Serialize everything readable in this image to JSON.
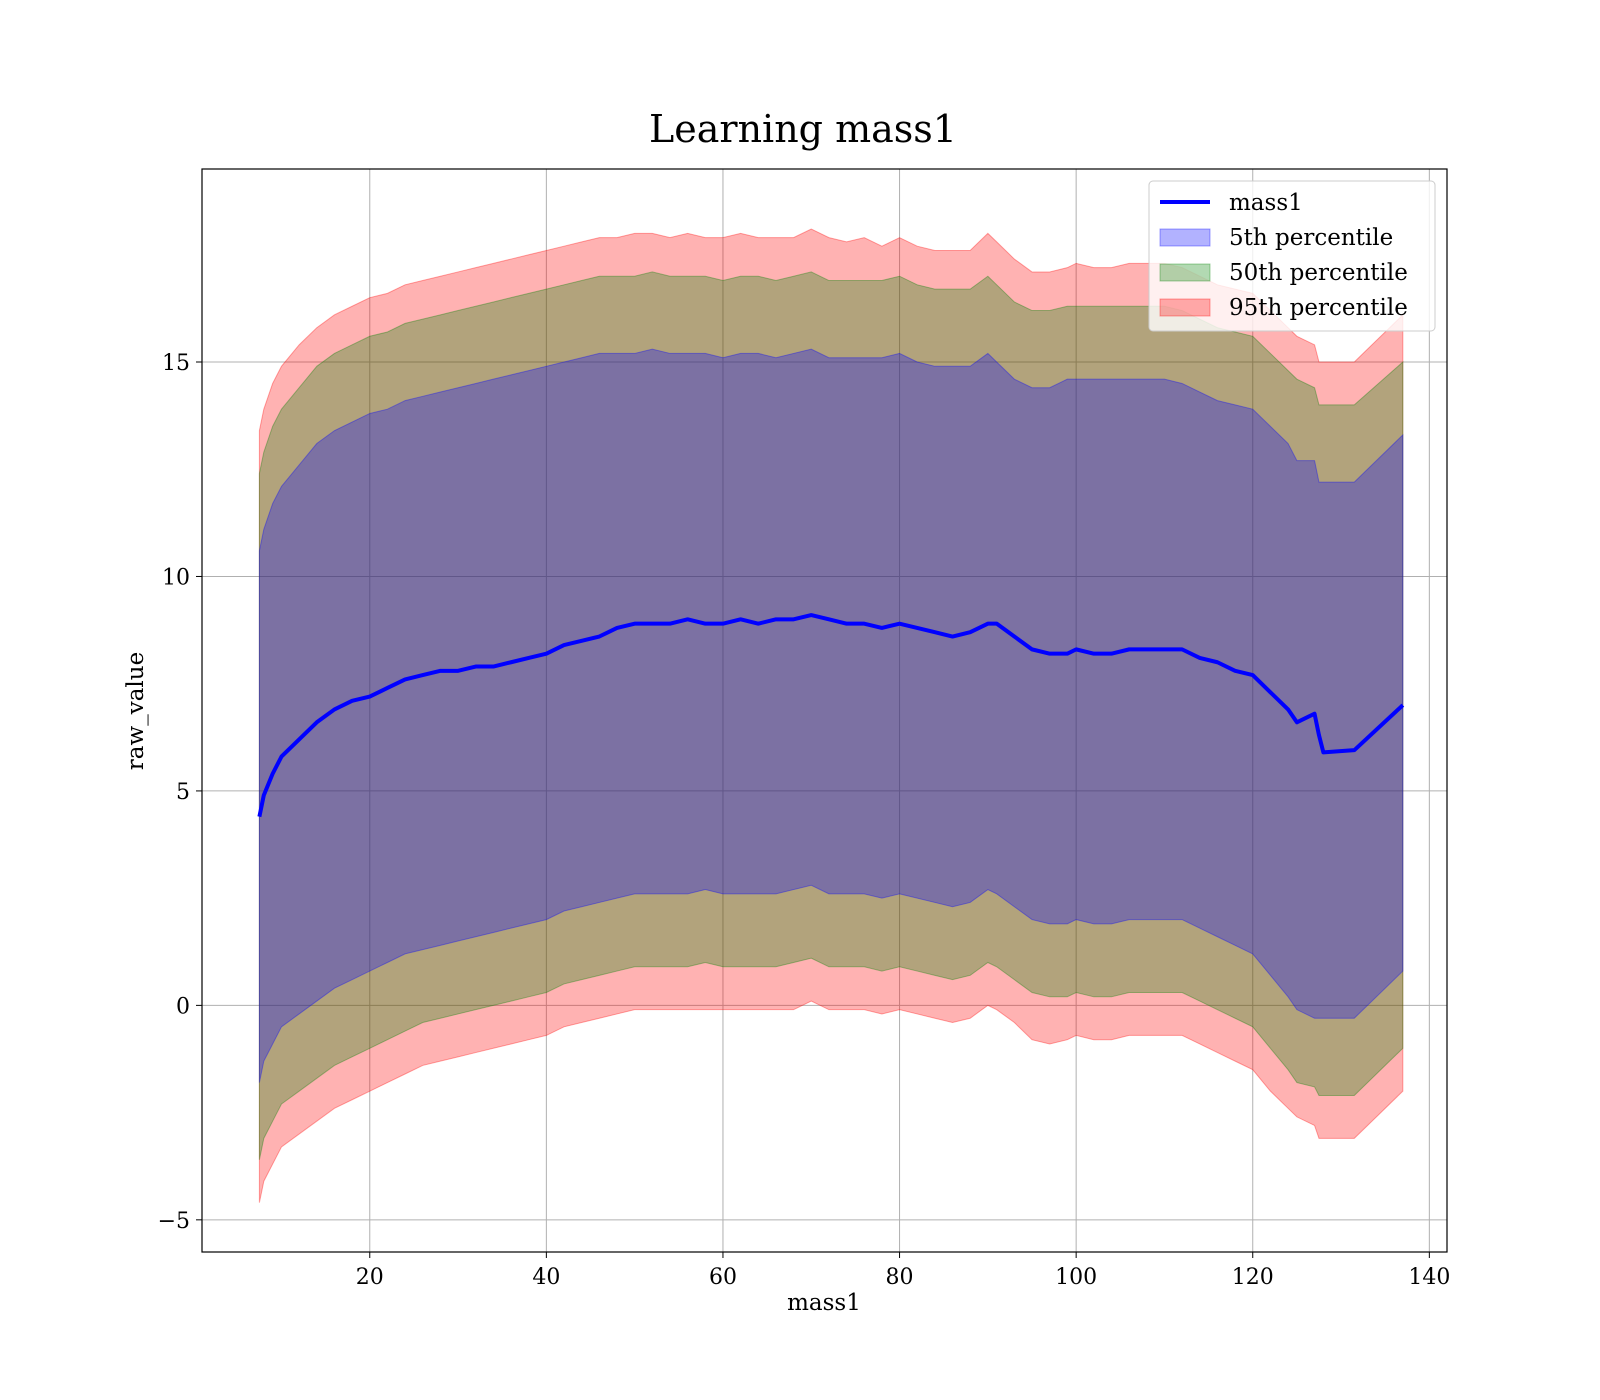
{
  "chart_data": {
    "type": "area",
    "title": "Learning mass1",
    "xlabel": "mass1",
    "ylabel": "raw_value",
    "xlim": [
      1,
      142
    ],
    "ylim": [
      -5.75,
      19.5
    ],
    "xticks": [
      20,
      40,
      60,
      80,
      100,
      120,
      140
    ],
    "yticks": [
      -5,
      0,
      5,
      10,
      15
    ],
    "xtick_labels": [
      "20",
      "40",
      "60",
      "80",
      "100",
      "120",
      "140"
    ],
    "ytick_labels": [
      "−5",
      "0",
      "5",
      "10",
      "15"
    ],
    "grid": true,
    "legend_position": "top-right",
    "colors": {
      "mass1": "#0000ff",
      "p5": "#0000ff",
      "p50": "#008000",
      "p95": "#ff0000"
    },
    "legend": [
      {
        "label": "mass1",
        "kind": "line",
        "color": "#0000ff"
      },
      {
        "label": "5th percentile",
        "kind": "patch",
        "color": "#0000ff"
      },
      {
        "label": "50th percentile",
        "kind": "patch",
        "color": "#008000"
      },
      {
        "label": "95th percentile",
        "kind": "patch",
        "color": "#ff0000"
      }
    ],
    "x": [
      7.5,
      8,
      9,
      10,
      12,
      14,
      16,
      18,
      20,
      22,
      24,
      26,
      28,
      30,
      32,
      34,
      36,
      38,
      40,
      42,
      44,
      46,
      48,
      50,
      52,
      54,
      56,
      58,
      60,
      62,
      64,
      66,
      68,
      70,
      72,
      74,
      76,
      78,
      80,
      82,
      84,
      86,
      88,
      90,
      91,
      93,
      95,
      97,
      99,
      100,
      102,
      104,
      106,
      108,
      110,
      112,
      114,
      116,
      118,
      120,
      122,
      124,
      125,
      127,
      127.5,
      128,
      131.5,
      137
    ],
    "series": [
      {
        "name": "mass1",
        "values": [
          4.4,
          4.9,
          5.4,
          5.8,
          6.2,
          6.6,
          6.9,
          7.1,
          7.2,
          7.4,
          7.6,
          7.7,
          7.8,
          7.8,
          7.9,
          7.9,
          8.0,
          8.1,
          8.2,
          8.4,
          8.5,
          8.6,
          8.8,
          8.9,
          8.9,
          8.9,
          9.0,
          8.9,
          8.9,
          9.0,
          8.9,
          9.0,
          9.0,
          9.1,
          9.0,
          8.9,
          8.9,
          8.8,
          8.9,
          8.8,
          8.7,
          8.6,
          8.7,
          8.9,
          8.9,
          8.6,
          8.3,
          8.2,
          8.2,
          8.3,
          8.2,
          8.2,
          8.3,
          8.3,
          8.3,
          8.3,
          8.1,
          8.0,
          7.8,
          7.7,
          7.3,
          6.9,
          6.6,
          6.8,
          6.3,
          5.9,
          5.95,
          7.0
        ]
      },
      {
        "name": "5th percentile",
        "upper": [
          10.6,
          11.1,
          11.7,
          12.1,
          12.6,
          13.1,
          13.4,
          13.6,
          13.8,
          13.9,
          14.1,
          14.2,
          14.3,
          14.4,
          14.5,
          14.6,
          14.7,
          14.8,
          14.9,
          15.0,
          15.1,
          15.2,
          15.2,
          15.2,
          15.3,
          15.2,
          15.2,
          15.2,
          15.1,
          15.2,
          15.2,
          15.1,
          15.2,
          15.3,
          15.1,
          15.1,
          15.1,
          15.1,
          15.2,
          15.0,
          14.9,
          14.9,
          14.9,
          15.2,
          15.0,
          14.6,
          14.4,
          14.4,
          14.6,
          14.6,
          14.6,
          14.6,
          14.6,
          14.6,
          14.6,
          14.5,
          14.3,
          14.1,
          14.0,
          13.9,
          13.5,
          13.1,
          12.7,
          12.7,
          12.2,
          12.2,
          12.2,
          13.3
        ],
        "lower": [
          -1.8,
          -1.3,
          -0.9,
          -0.5,
          -0.2,
          0.1,
          0.4,
          0.6,
          0.8,
          1.0,
          1.2,
          1.3,
          1.4,
          1.5,
          1.6,
          1.7,
          1.8,
          1.9,
          2.0,
          2.2,
          2.3,
          2.4,
          2.5,
          2.6,
          2.6,
          2.6,
          2.6,
          2.7,
          2.6,
          2.6,
          2.6,
          2.6,
          2.7,
          2.8,
          2.6,
          2.6,
          2.6,
          2.5,
          2.6,
          2.5,
          2.4,
          2.3,
          2.4,
          2.7,
          2.6,
          2.3,
          2.0,
          1.9,
          1.9,
          2.0,
          1.9,
          1.9,
          2.0,
          2.0,
          2.0,
          2.0,
          1.8,
          1.6,
          1.4,
          1.2,
          0.7,
          0.2,
          -0.1,
          -0.3,
          -0.3,
          -0.3,
          -0.3,
          0.8
        ]
      },
      {
        "name": "50th percentile",
        "upper": [
          12.4,
          12.9,
          13.5,
          13.9,
          14.4,
          14.9,
          15.2,
          15.4,
          15.6,
          15.7,
          15.9,
          16.0,
          16.1,
          16.2,
          16.3,
          16.4,
          16.5,
          16.6,
          16.7,
          16.8,
          16.9,
          17.0,
          17.0,
          17.0,
          17.1,
          17.0,
          17.0,
          17.0,
          16.9,
          17.0,
          17.0,
          16.9,
          17.0,
          17.1,
          16.9,
          16.9,
          16.9,
          16.9,
          17.0,
          16.8,
          16.7,
          16.7,
          16.7,
          17.0,
          16.8,
          16.4,
          16.2,
          16.2,
          16.3,
          16.3,
          16.3,
          16.3,
          16.3,
          16.3,
          16.3,
          16.2,
          16.0,
          15.8,
          15.7,
          15.6,
          15.2,
          14.8,
          14.6,
          14.4,
          14.0,
          14.0,
          14.0,
          15.0
        ],
        "lower": [
          -3.6,
          -3.1,
          -2.7,
          -2.3,
          -2.0,
          -1.7,
          -1.4,
          -1.2,
          -1.0,
          -0.8,
          -0.6,
          -0.4,
          -0.3,
          -0.2,
          -0.1,
          0.0,
          0.1,
          0.2,
          0.3,
          0.5,
          0.6,
          0.7,
          0.8,
          0.9,
          0.9,
          0.9,
          0.9,
          1.0,
          0.9,
          0.9,
          0.9,
          0.9,
          1.0,
          1.1,
          0.9,
          0.9,
          0.9,
          0.8,
          0.9,
          0.8,
          0.7,
          0.6,
          0.7,
          1.0,
          0.9,
          0.6,
          0.3,
          0.2,
          0.2,
          0.3,
          0.2,
          0.2,
          0.3,
          0.3,
          0.3,
          0.3,
          0.1,
          -0.1,
          -0.3,
          -0.5,
          -1.0,
          -1.5,
          -1.8,
          -1.9,
          -2.1,
          -2.1,
          -2.1,
          -1.0
        ]
      },
      {
        "name": "95th percentile",
        "upper": [
          13.4,
          13.9,
          14.5,
          14.9,
          15.4,
          15.8,
          16.1,
          16.3,
          16.5,
          16.6,
          16.8,
          16.9,
          17.0,
          17.1,
          17.2,
          17.3,
          17.4,
          17.5,
          17.6,
          17.7,
          17.8,
          17.9,
          17.9,
          18.0,
          18.0,
          17.9,
          18.0,
          17.9,
          17.9,
          18.0,
          17.9,
          17.9,
          17.9,
          18.1,
          17.9,
          17.8,
          17.9,
          17.7,
          17.9,
          17.7,
          17.6,
          17.6,
          17.6,
          18.0,
          17.8,
          17.4,
          17.1,
          17.1,
          17.2,
          17.3,
          17.2,
          17.2,
          17.3,
          17.3,
          17.3,
          17.2,
          17.0,
          16.8,
          16.7,
          16.6,
          16.2,
          15.8,
          15.6,
          15.4,
          15.0,
          15.0,
          15.0,
          16.1
        ],
        "lower": [
          -4.6,
          -4.1,
          -3.7,
          -3.3,
          -3.0,
          -2.7,
          -2.4,
          -2.2,
          -2.0,
          -1.8,
          -1.6,
          -1.4,
          -1.3,
          -1.2,
          -1.1,
          -1.0,
          -0.9,
          -0.8,
          -0.7,
          -0.5,
          -0.4,
          -0.3,
          -0.2,
          -0.1,
          -0.1,
          -0.1,
          -0.1,
          -0.1,
          -0.1,
          -0.1,
          -0.1,
          -0.1,
          -0.1,
          0.1,
          -0.1,
          -0.1,
          -0.1,
          -0.2,
          -0.1,
          -0.2,
          -0.3,
          -0.4,
          -0.3,
          0.0,
          -0.1,
          -0.4,
          -0.8,
          -0.9,
          -0.8,
          -0.7,
          -0.8,
          -0.8,
          -0.7,
          -0.7,
          -0.7,
          -0.7,
          -0.9,
          -1.1,
          -1.3,
          -1.5,
          -2.0,
          -2.4,
          -2.6,
          -2.8,
          -3.1,
          -3.1,
          -3.1,
          -2.0
        ]
      }
    ]
  }
}
